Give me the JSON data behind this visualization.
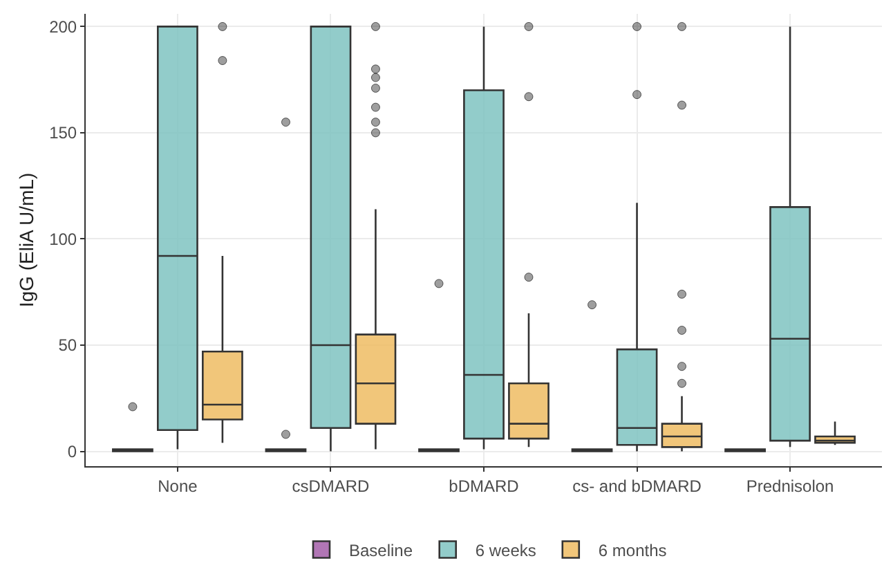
{
  "chart_data": {
    "type": "box",
    "ylabel": "IgG (EliA U/mL)",
    "categories": [
      "None",
      "csDMARD",
      "bDMARD",
      "cs- and bDMARD",
      "Prednisolon"
    ],
    "ylim": [
      -7,
      206
    ],
    "yticks": [
      0,
      50,
      100,
      150,
      200
    ],
    "grid": true,
    "legend": "bottom",
    "series": [
      {
        "name": "Baseline",
        "color": "#a35ea8",
        "boxes": [
          {
            "low": 0,
            "q1": 0,
            "median": 0.5,
            "q3": 1,
            "high": 1,
            "outliers": [
              21
            ]
          },
          {
            "low": 0,
            "q1": 0,
            "median": 0.5,
            "q3": 1,
            "high": 1,
            "outliers": [
              8,
              155
            ]
          },
          {
            "low": 0,
            "q1": 0,
            "median": 0.5,
            "q3": 1,
            "high": 1,
            "outliers": [
              79
            ]
          },
          {
            "low": 0,
            "q1": 0,
            "median": 0.5,
            "q3": 1,
            "high": 1,
            "outliers": [
              69
            ]
          },
          {
            "low": 0,
            "q1": 0,
            "median": 0.5,
            "q3": 1,
            "high": 1
          }
        ]
      },
      {
        "name": "6 weeks",
        "color": "#7fc3c1",
        "boxes": [
          {
            "low": 1,
            "q1": 10,
            "median": 92,
            "q3": 200,
            "high": 200
          },
          {
            "low": 0,
            "q1": 11,
            "median": 50,
            "q3": 200,
            "high": 200
          },
          {
            "low": 1,
            "q1": 6,
            "median": 36,
            "q3": 170,
            "high": 200
          },
          {
            "low": 0,
            "q1": 3,
            "median": 11,
            "q3": 48,
            "high": 117,
            "outliers": [
              168,
              200
            ]
          },
          {
            "low": 2,
            "q1": 5,
            "median": 53,
            "q3": 115,
            "high": 200
          }
        ]
      },
      {
        "name": "6 months",
        "color": "#eebc63",
        "boxes": [
          {
            "low": 4,
            "q1": 15,
            "median": 22,
            "q3": 47,
            "high": 92,
            "outliers": [
              184,
              200
            ]
          },
          {
            "low": 1,
            "q1": 13,
            "median": 32,
            "q3": 55,
            "high": 114,
            "outliers": [
              150,
              155,
              162,
              171,
              176,
              180,
              200
            ]
          },
          {
            "low": 2,
            "q1": 6,
            "median": 13,
            "q3": 32,
            "high": 65,
            "outliers": [
              82,
              167,
              200
            ]
          },
          {
            "low": 0,
            "q1": 2,
            "median": 7,
            "q3": 13,
            "high": 26,
            "outliers": [
              32,
              40,
              57,
              74,
              163,
              200
            ]
          },
          {
            "low": 3,
            "q1": 4,
            "median": 5,
            "q3": 7,
            "high": 14
          }
        ]
      }
    ]
  }
}
